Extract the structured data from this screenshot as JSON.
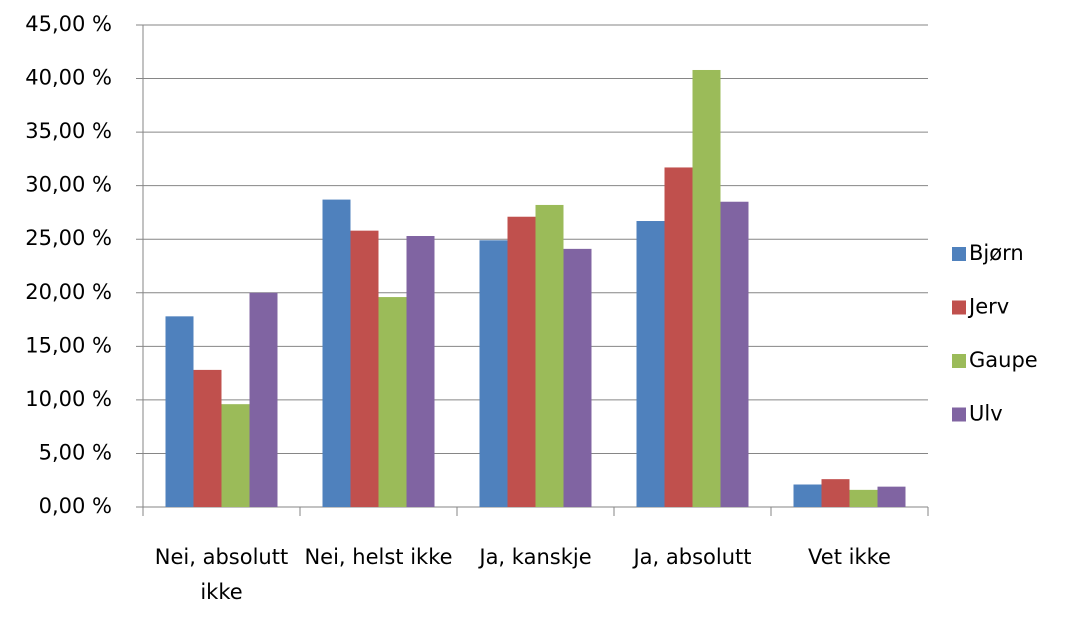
{
  "chart_data": {
    "type": "bar",
    "categories": [
      "Nei, absolutt ikke",
      "Nei, helst ikke",
      "Ja, kanskje",
      "Ja, absolutt",
      "Vet ikke"
    ],
    "series": [
      {
        "name": "Bjørn",
        "color": "#4f81bd",
        "values": [
          17.8,
          28.7,
          24.9,
          26.7,
          2.1
        ]
      },
      {
        "name": "Jerv",
        "color": "#c0504d",
        "values": [
          12.8,
          25.8,
          27.1,
          31.7,
          2.6
        ]
      },
      {
        "name": "Gaupe",
        "color": "#9bbb59",
        "values": [
          9.6,
          19.6,
          28.2,
          40.8,
          1.6
        ]
      },
      {
        "name": "Ulv",
        "color": "#8064a2",
        "values": [
          20.0,
          25.3,
          24.1,
          28.5,
          1.9
        ]
      }
    ],
    "ylim": [
      0,
      45
    ],
    "yticks": [
      {
        "value": 0,
        "label": "0,00 %"
      },
      {
        "value": 5,
        "label": "5,00 %"
      },
      {
        "value": 10,
        "label": "10,00 %"
      },
      {
        "value": 15,
        "label": "15,00 %"
      },
      {
        "value": 20,
        "label": "20,00 %"
      },
      {
        "value": 25,
        "label": "25,00 %"
      },
      {
        "value": 30,
        "label": "30,00 %"
      },
      {
        "value": 35,
        "label": "35,00 %"
      },
      {
        "value": 40,
        "label": "40,00 %"
      },
      {
        "value": 45,
        "label": "45,00 %"
      }
    ],
    "grid": true,
    "legend": "right"
  }
}
